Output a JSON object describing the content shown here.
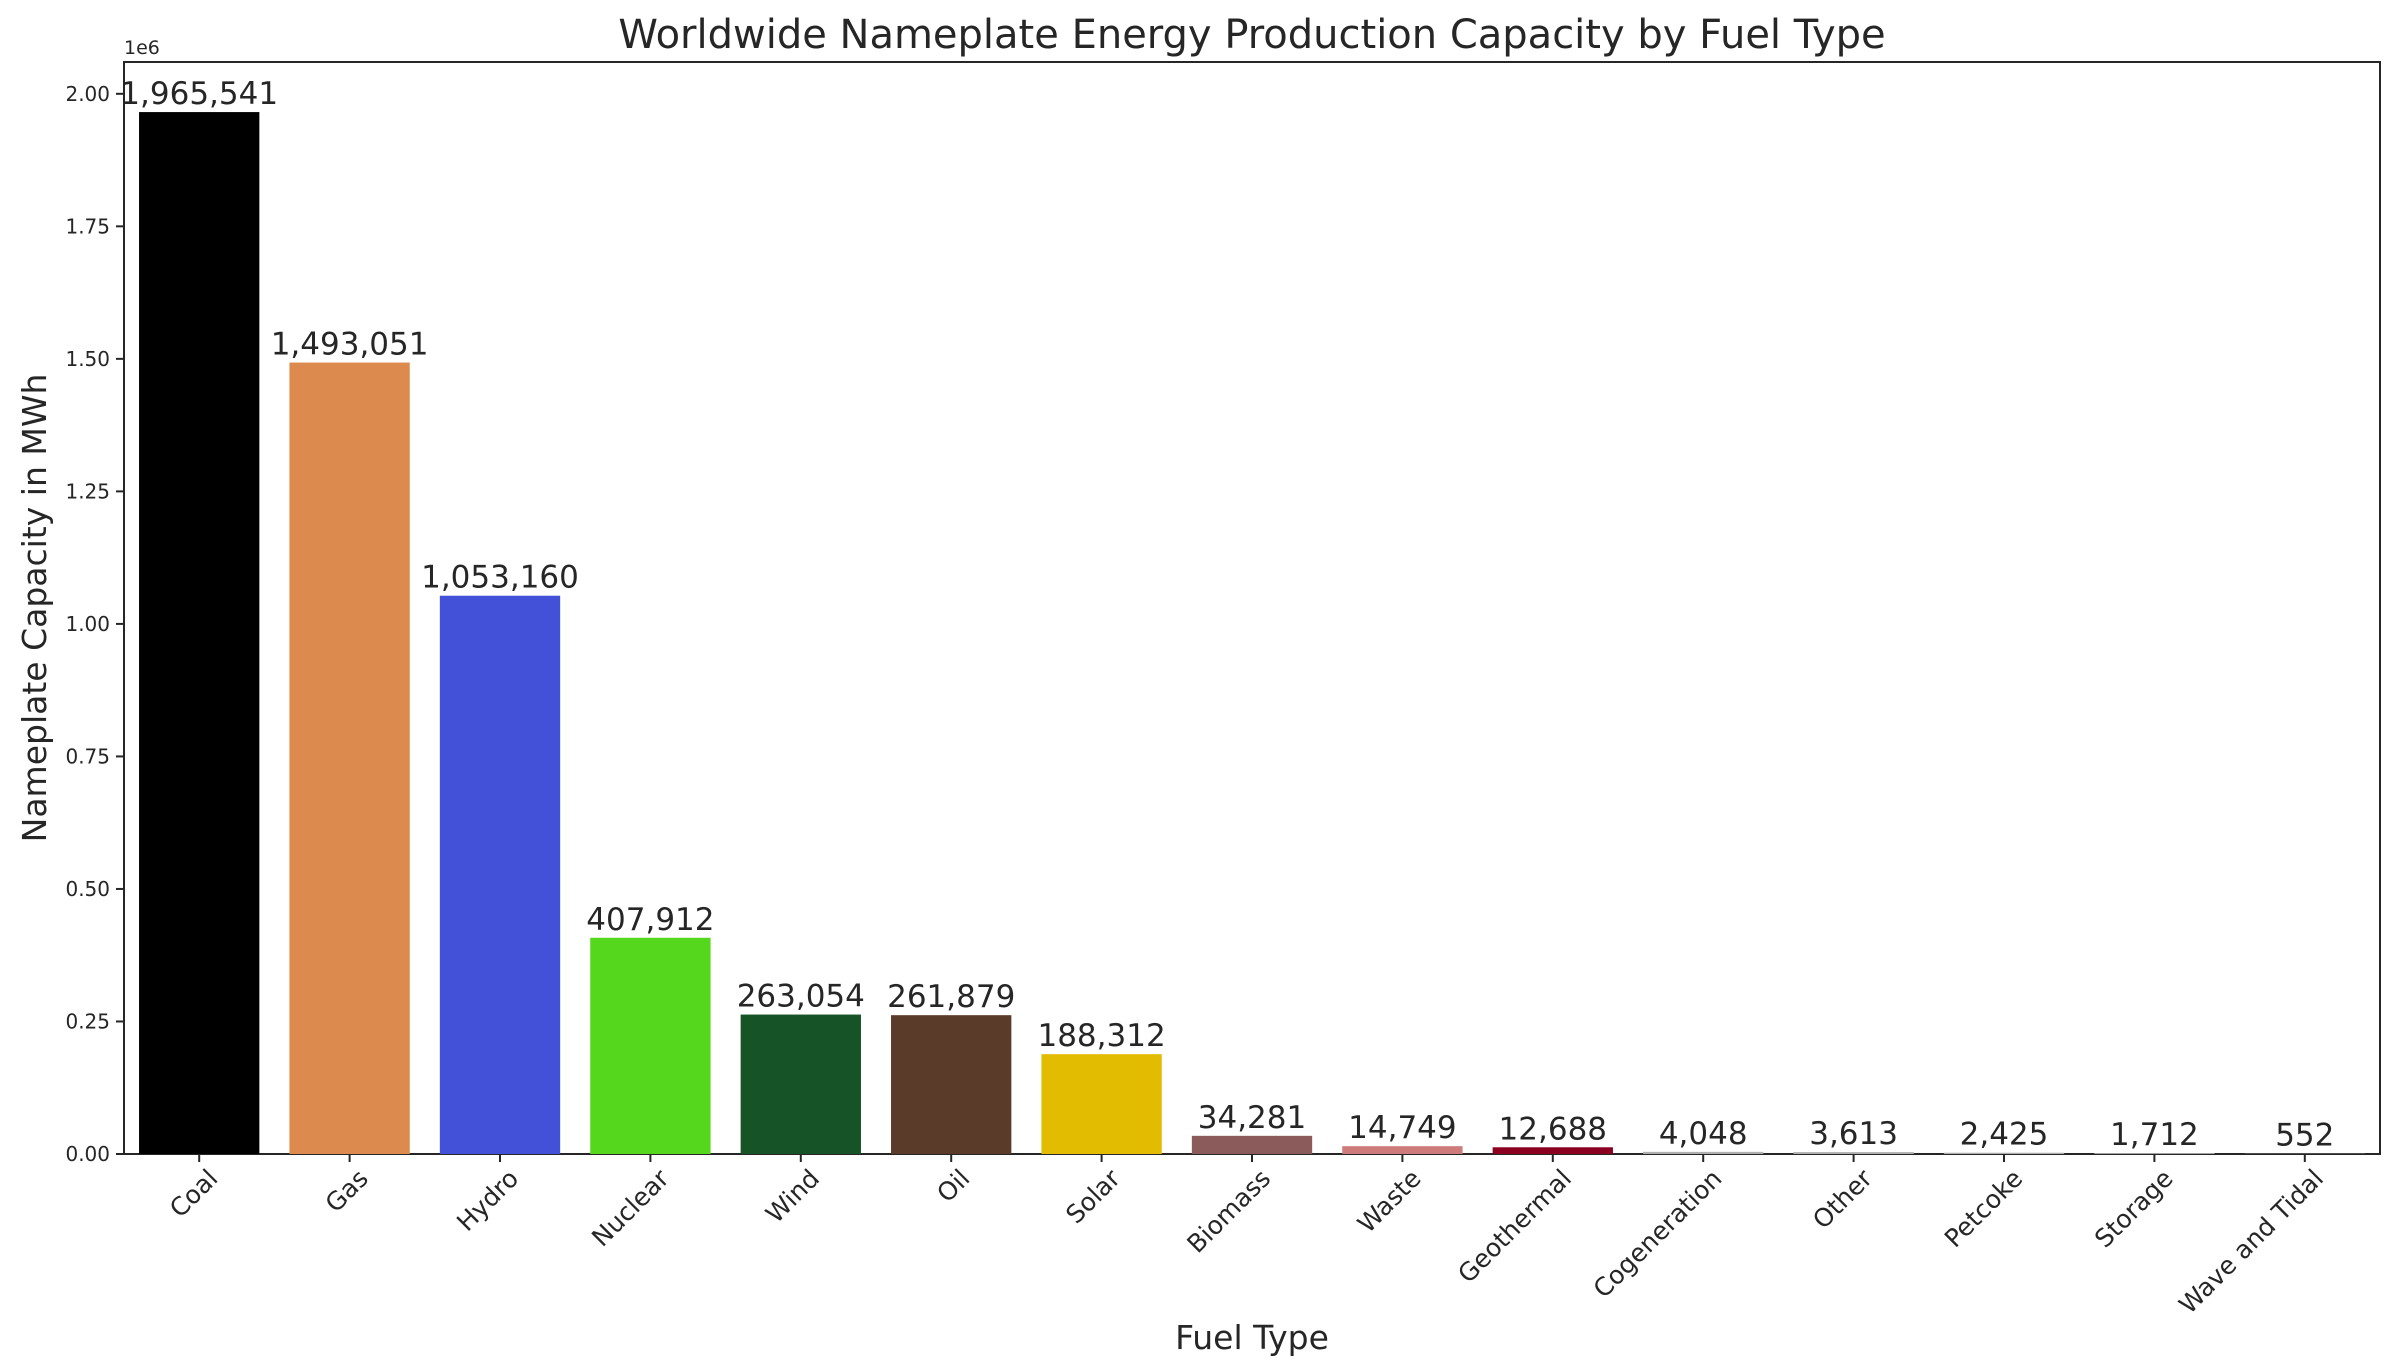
{
  "chart_data": {
    "type": "bar",
    "title": "Worldwide Nameplate Energy Production Capacity by Fuel Type",
    "xlabel": "Fuel Type",
    "ylabel": "Nameplate Capacity in MWh",
    "y_scale_label": "1e6",
    "ylim": [
      0,
      2060000
    ],
    "yticks": [
      0,
      250000,
      500000,
      750000,
      1000000,
      1250000,
      1500000,
      1750000,
      2000000
    ],
    "ytick_labels": [
      "0.00",
      "0.25",
      "0.50",
      "0.75",
      "1.00",
      "1.25",
      "1.50",
      "1.75",
      "2.00"
    ],
    "grid": false,
    "legend": "none",
    "categories": [
      "Coal",
      "Gas",
      "Hydro",
      "Nuclear",
      "Wind",
      "Oil",
      "Solar",
      "Biomass",
      "Waste",
      "Geothermal",
      "Cogeneration",
      "Other",
      "Petcoke",
      "Storage",
      "Wave and Tidal"
    ],
    "values": [
      1965541,
      1493051,
      1053160,
      407912,
      263054,
      261879,
      188312,
      34281,
      14749,
      12688,
      4048,
      3613,
      2425,
      1712,
      552
    ],
    "value_labels": [
      "1,965,541",
      "1,493,051",
      "1,053,160",
      "407,912",
      "263,054",
      "261,879",
      "188,312",
      "34,281",
      "14,749",
      "12,688",
      "4,048",
      "3,613",
      "2,425",
      "1,712",
      "552"
    ],
    "colors": [
      "#000000",
      "#dd8a4f",
      "#4350d8",
      "#55d71e",
      "#165427",
      "#5a3a28",
      "#e2bc00",
      "#8b5a5a",
      "#cd7b7b",
      "#8b0021",
      "#b0b0b0",
      "#b0b0b0",
      "#b0b0b0",
      "#b0b0b0",
      "#b0b0b0"
    ]
  }
}
